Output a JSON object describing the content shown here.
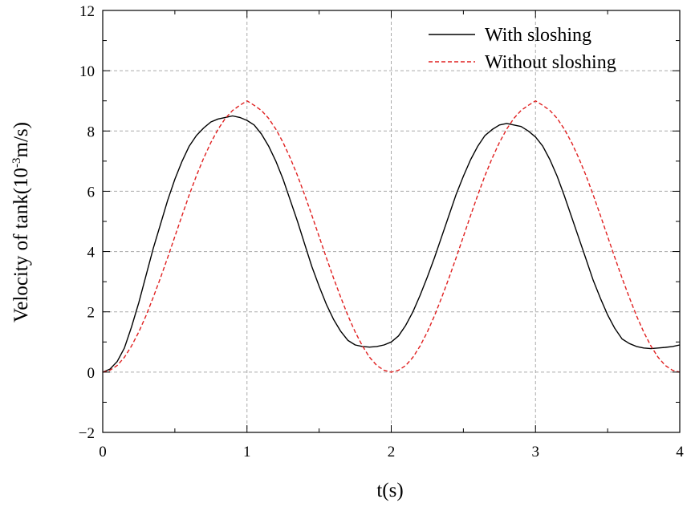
{
  "chart_data": {
    "type": "line",
    "xlabel": "t(s)",
    "ylabel": {
      "prefix": "Velocity of tank(10",
      "exponent": "-3",
      "suffix": "m/s)"
    },
    "xlim": [
      0,
      4
    ],
    "ylim": [
      -2,
      12
    ],
    "xticks": [
      0,
      1,
      2,
      3,
      4
    ],
    "yticks": [
      -2,
      0,
      2,
      4,
      6,
      8,
      10,
      12
    ],
    "xtick_labels": [
      "0",
      "1",
      "2",
      "3",
      "4"
    ],
    "ytick_labels": [
      "−2",
      "0",
      "2",
      "4",
      "6",
      "8",
      "10",
      "12"
    ],
    "grid": true,
    "legend_position": "top-right",
    "series": [
      {
        "name": "With sloshing",
        "color": "#000000",
        "style": "solid",
        "x": [
          0,
          0.05,
          0.1,
          0.15,
          0.2,
          0.25,
          0.3,
          0.35,
          0.4,
          0.45,
          0.5,
          0.55,
          0.6,
          0.65,
          0.7,
          0.75,
          0.8,
          0.85,
          0.9,
          0.95,
          1.0,
          1.05,
          1.1,
          1.15,
          1.2,
          1.25,
          1.3,
          1.35,
          1.4,
          1.45,
          1.5,
          1.55,
          1.6,
          1.65,
          1.7,
          1.75,
          1.8,
          1.85,
          1.9,
          1.95,
          2.0,
          2.05,
          2.1,
          2.15,
          2.2,
          2.25,
          2.3,
          2.35,
          2.4,
          2.45,
          2.5,
          2.55,
          2.6,
          2.65,
          2.7,
          2.75,
          2.8,
          2.85,
          2.9,
          2.95,
          3.0,
          3.05,
          3.1,
          3.15,
          3.2,
          3.25,
          3.3,
          3.35,
          3.4,
          3.45,
          3.5,
          3.55,
          3.6,
          3.65,
          3.7,
          3.75,
          3.8,
          3.85,
          3.9,
          3.95,
          4.0
        ],
        "y": [
          0,
          0.1,
          0.35,
          0.8,
          1.5,
          2.3,
          3.2,
          4.1,
          4.9,
          5.7,
          6.4,
          7.0,
          7.5,
          7.85,
          8.1,
          8.3,
          8.4,
          8.45,
          8.5,
          8.45,
          8.35,
          8.2,
          7.9,
          7.5,
          7.0,
          6.4,
          5.7,
          5.0,
          4.25,
          3.5,
          2.85,
          2.25,
          1.75,
          1.35,
          1.05,
          0.9,
          0.85,
          0.83,
          0.85,
          0.9,
          1.0,
          1.2,
          1.55,
          2.0,
          2.55,
          3.15,
          3.8,
          4.5,
          5.2,
          5.9,
          6.5,
          7.05,
          7.5,
          7.85,
          8.05,
          8.2,
          8.25,
          8.2,
          8.15,
          8.0,
          7.8,
          7.5,
          7.05,
          6.5,
          5.85,
          5.15,
          4.45,
          3.75,
          3.05,
          2.45,
          1.9,
          1.45,
          1.1,
          0.95,
          0.85,
          0.8,
          0.78,
          0.8,
          0.82,
          0.85,
          0.9
        ]
      },
      {
        "name": "Without sloshing",
        "color": "#e02020",
        "style": "dashed",
        "x": [
          0,
          0.05,
          0.1,
          0.15,
          0.2,
          0.25,
          0.3,
          0.35,
          0.4,
          0.45,
          0.5,
          0.55,
          0.6,
          0.65,
          0.7,
          0.75,
          0.8,
          0.85,
          0.9,
          0.95,
          1.0,
          1.05,
          1.1,
          1.15,
          1.2,
          1.25,
          1.3,
          1.35,
          1.4,
          1.45,
          1.5,
          1.55,
          1.6,
          1.65,
          1.7,
          1.75,
          1.8,
          1.85,
          1.9,
          1.95,
          2.0,
          2.05,
          2.1,
          2.15,
          2.2,
          2.25,
          2.3,
          2.35,
          2.4,
          2.45,
          2.5,
          2.55,
          2.6,
          2.65,
          2.7,
          2.75,
          2.8,
          2.85,
          2.9,
          2.95,
          3.0,
          3.05,
          3.1,
          3.15,
          3.2,
          3.25,
          3.3,
          3.35,
          3.4,
          3.45,
          3.5,
          3.55,
          3.6,
          3.65,
          3.7,
          3.75,
          3.8,
          3.85,
          3.9,
          3.95,
          4.0
        ],
        "y": [
          0.0,
          0.06,
          0.22,
          0.49,
          0.87,
          1.33,
          1.87,
          2.48,
          3.12,
          3.8,
          4.5,
          5.2,
          5.88,
          6.52,
          7.1,
          7.62,
          8.06,
          8.42,
          8.68,
          8.85,
          9.0,
          8.85,
          8.68,
          8.42,
          8.06,
          7.62,
          7.1,
          6.52,
          5.88,
          5.2,
          4.5,
          3.8,
          3.12,
          2.48,
          1.87,
          1.33,
          0.87,
          0.49,
          0.22,
          0.06,
          0.0,
          0.06,
          0.22,
          0.49,
          0.87,
          1.33,
          1.87,
          2.48,
          3.12,
          3.8,
          4.5,
          5.2,
          5.88,
          6.52,
          7.1,
          7.62,
          8.06,
          8.42,
          8.68,
          8.85,
          9.0,
          8.85,
          8.68,
          8.42,
          8.06,
          7.62,
          7.1,
          6.52,
          5.88,
          5.2,
          4.5,
          3.8,
          3.12,
          2.48,
          1.87,
          1.33,
          0.87,
          0.49,
          0.22,
          0.06,
          0.0
        ]
      }
    ]
  }
}
